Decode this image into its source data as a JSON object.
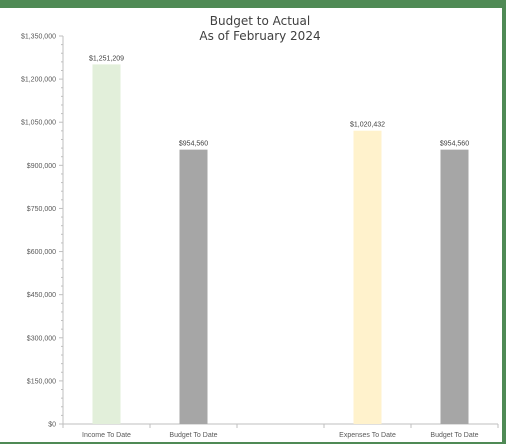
{
  "chart_data": {
    "type": "bar",
    "title": "Budget to Actual",
    "subtitle": "As of February 2024",
    "xlabel": "",
    "ylabel": "",
    "ylim": [
      0,
      1350000
    ],
    "grid": false,
    "y_ticks": [
      "$0",
      "$150,000",
      "$300,000",
      "$450,000",
      "$600,000",
      "$750,000",
      "$900,000",
      "$1,050,000",
      "$1,200,000",
      "$1,350,000"
    ],
    "y_tick_values": [
      0,
      150000,
      300000,
      450000,
      600000,
      750000,
      900000,
      1050000,
      1200000,
      1350000
    ],
    "categories": [
      "Income To Date",
      "Budget To Date",
      "",
      "Expenses To Date",
      "Budget To Date"
    ],
    "values": [
      1251209,
      954560,
      null,
      1020432,
      954560
    ],
    "data_labels": [
      "$1,251,209",
      "$954,560",
      "",
      "$1,020,432",
      "$954,560"
    ],
    "colors": [
      "#e2efda",
      "#a6a6a6",
      null,
      "#fff2cc",
      "#a6a6a6"
    ]
  }
}
